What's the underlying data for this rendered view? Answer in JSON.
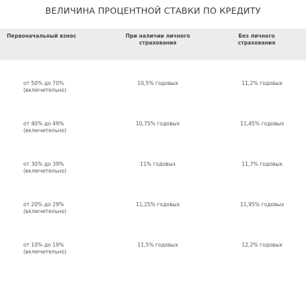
{
  "title": "ВЕЛИЧИНА ПРОЦЕНТНОЙ СТАВКИ ПО КРЕДИТУ",
  "table": {
    "headers": {
      "down_payment": "Первоначальный взнос",
      "with_insurance_line1": "При наличии личного",
      "with_insurance_line2": "страхования",
      "without_insurance_line1": "Без личного",
      "without_insurance_line2": "страхования"
    },
    "rows": [
      {
        "down_payment": "от 50% до 70%",
        "note": "(включительно)",
        "with_insurance": "10,5% годовых",
        "without_insurance": "11,2% годовых"
      },
      {
        "down_payment": "от 40% до 49%",
        "note": "(включительно)",
        "with_insurance": "10,75% годовых",
        "without_insurance": "11,45% годовых"
      },
      {
        "down_payment": "от 30% до 39%",
        "note": "(включительно)",
        "with_insurance": "11% годовых",
        "without_insurance": "11,7% годовых"
      },
      {
        "down_payment": "от 20% до 29%",
        "note": "(включительно)",
        "with_insurance": "11,25% годовых",
        "without_insurance": "11,95% годовых"
      },
      {
        "down_payment": "от 10% до 19%",
        "note": "(включительно)",
        "with_insurance": "11,5% годовых",
        "without_insurance": "12,2% годовых"
      }
    ]
  }
}
